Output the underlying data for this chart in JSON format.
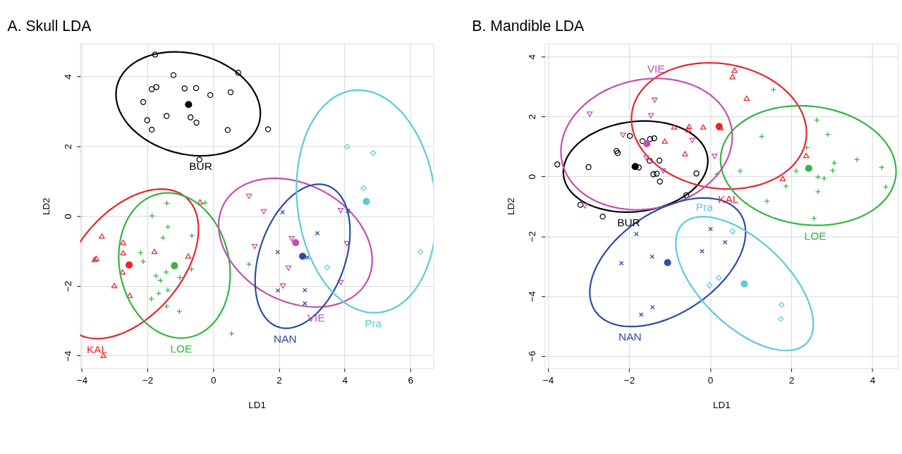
{
  "chart_data": [
    {
      "type": "scatter",
      "title": "A. Skull LDA",
      "xlabel": "LD1",
      "ylabel": "LD2",
      "xlim": [
        -4.05,
        6.7
      ],
      "ylim": [
        -4.36,
        4.94
      ],
      "xticks": [
        -4,
        -2,
        0,
        2,
        4,
        6
      ],
      "yticks": [
        -4,
        -2,
        0,
        2,
        4
      ],
      "grid": true,
      "series": [
        {
          "name": "BUR",
          "marker": "circle",
          "color": "#000000",
          "x": [
            -1.77,
            0.76,
            -1.21,
            -1.87,
            -1.73,
            -0.87,
            -0.52,
            -0.09,
            0.53,
            -2.13,
            -1.42,
            -0.69,
            -0.51,
            -2.01,
            -1.87,
            0.44,
            -0.42,
            1.67
          ],
          "values": [
            4.63,
            4.11,
            4.04,
            3.64,
            3.7,
            3.66,
            3.67,
            3.47,
            3.55,
            3.27,
            2.87,
            2.83,
            2.68,
            2.75,
            2.48,
            2.47,
            1.62,
            2.49
          ]
        },
        {
          "marker": "dot",
          "color": "#000000",
          "x": [
            -0.75
          ],
          "values": [
            3.2
          ]
        },
        {
          "name": "KAL",
          "marker": "triangle",
          "color": "#e8262b",
          "x": [
            -3.39,
            -2.74,
            -2.74,
            -3.61,
            -3.56,
            -1.79,
            -0.76,
            -2.76,
            -3.01,
            -2.54,
            -0.4,
            -3.34
          ],
          "values": [
            -0.57,
            -0.75,
            -1.05,
            -1.24,
            -1.21,
            -1.01,
            -1.14,
            -1.6,
            -1.99,
            -2.27,
            0.41,
            -3.99
          ]
        },
        {
          "marker": "dot",
          "color": "#e8262b",
          "x": [
            -2.56
          ],
          "values": [
            -1.4
          ]
        },
        {
          "name": "LOE",
          "marker": "cross",
          "color": "#33b540",
          "x": [
            -1.41,
            -0.25,
            -1.86,
            -1.38,
            -1.53,
            -0.65,
            -2.21,
            -2.13,
            -0.66,
            -1.43,
            -1.74,
            -1.61,
            -1.01,
            -1.38,
            -1.66,
            -1.88,
            -1.42,
            -1.03,
            0.56,
            1.09
          ],
          "values": [
            0.37,
            0.38,
            0.01,
            -0.31,
            -0.62,
            -0.56,
            -1.05,
            -1.3,
            -1.52,
            -1.6,
            -1.71,
            -1.84,
            -1.76,
            -2.12,
            -2.21,
            -2.37,
            -2.58,
            -2.73,
            -3.37,
            -1.38
          ]
        },
        {
          "marker": "dot",
          "color": "#33b540",
          "x": [
            -1.18
          ],
          "values": [
            -1.42
          ]
        },
        {
          "name": "VIE",
          "marker": "triangle-down",
          "color": "#c34fb0",
          "x": [
            1.09,
            1.54,
            1.26,
            2.39,
            2.29,
            2.12,
            3.88,
            4.07,
            3.88
          ],
          "values": [
            0.57,
            0.13,
            -0.87,
            -0.65,
            -1.49,
            -2.0,
            0.16,
            -0.79,
            -1.9
          ]
        },
        {
          "marker": "dot",
          "color": "#c34fb0",
          "x": [
            2.51
          ],
          "values": [
            -0.76
          ]
        },
        {
          "name": "NAN",
          "marker": "x",
          "color": "#2a4ea0",
          "x": [
            2.11,
            3.17,
            1.96,
            2.87,
            1.97,
            2.79,
            4.1,
            2.79
          ],
          "values": [
            0.11,
            -0.49,
            -1.03,
            -1.18,
            -2.13,
            -2.12,
            0.15,
            -2.5
          ]
        },
        {
          "marker": "dot",
          "color": "#2a4ea0",
          "x": [
            2.72
          ],
          "values": [
            -1.15
          ]
        },
        {
          "name": "Pra",
          "marker": "diamond",
          "color": "#5bcbdc",
          "x": [
            4.08,
            4.87,
            4.58,
            3.47,
            6.31
          ],
          "values": [
            1.99,
            1.81,
            0.8,
            -1.47,
            -1.02
          ]
        },
        {
          "marker": "dot",
          "color": "#5bcbdc",
          "x": [
            4.66
          ],
          "values": [
            0.42
          ]
        }
      ]
    },
    {
      "type": "scatter",
      "title": "B. Mandible LDA",
      "xlabel": "LD1",
      "ylabel": "LD2",
      "xlim": [
        -4.08,
        4.63
      ],
      "ylim": [
        -6.41,
        4.43
      ],
      "xticks": [
        -4,
        -2,
        0,
        2,
        4
      ],
      "yticks": [
        -6,
        -4,
        -2,
        0,
        2,
        4
      ],
      "grid": true,
      "series": [
        {
          "name": "BUR",
          "marker": "circle",
          "color": "#000000",
          "x": [
            -3.77,
            -3.0,
            -2.31,
            -2.28,
            -1.98,
            -1.67,
            -1.48,
            -1.38,
            -1.49,
            -1.25,
            -1.76,
            -1.4,
            -1.32,
            -1.24,
            -0.34,
            -0.59,
            -3.2,
            -2.65
          ],
          "values": [
            0.4,
            0.31,
            0.85,
            0.78,
            1.35,
            1.18,
            1.25,
            1.27,
            0.52,
            0.53,
            0.3,
            0.07,
            0.09,
            -0.17,
            0.1,
            -0.63,
            -0.95,
            -1.34
          ]
        },
        {
          "marker": "dot",
          "color": "#000000",
          "x": [
            -1.85
          ],
          "values": [
            0.33
          ]
        },
        {
          "name": "KAL",
          "marker": "triangle",
          "color": "#e8262b",
          "x": [
            -0.89,
            -0.52,
            -0.54,
            -0.17,
            -1.12,
            -0.62,
            0.6,
            0.55,
            0.9,
            2.37,
            1.79,
            0.26
          ],
          "values": [
            1.65,
            1.67,
            1.56,
            1.65,
            1.18,
            0.76,
            3.55,
            3.33,
            2.61,
            0.7,
            -0.07,
            1.63
          ]
        },
        {
          "marker": "dot",
          "color": "#e8262b",
          "x": [
            0.22
          ],
          "values": [
            1.67
          ]
        },
        {
          "name": "LOE",
          "marker": "cross",
          "color": "#33b540",
          "x": [
            1.56,
            2.63,
            2.9,
            1.27,
            2.38,
            3.06,
            3.62,
            3.02,
            2.12,
            2.66,
            2.81,
            4.23,
            4.33,
            1.87,
            2.66,
            1.4,
            2.56,
            0.74,
            0.17
          ],
          "values": [
            2.9,
            1.88,
            1.4,
            1.33,
            0.96,
            0.45,
            0.56,
            0.2,
            0.18,
            -0.02,
            -0.07,
            0.3,
            -0.35,
            -0.33,
            -0.51,
            -0.83,
            -1.4,
            0.18,
            0.07
          ]
        },
        {
          "marker": "dot",
          "color": "#33b540",
          "x": [
            2.43
          ],
          "values": [
            0.27
          ]
        },
        {
          "name": "VIE",
          "marker": "triangle-down",
          "color": "#c34fb0",
          "x": [
            -2.97,
            -1.37,
            -1.46,
            -2.15,
            -0.44,
            -1.58,
            -1.16,
            0.11,
            -3.09
          ],
          "values": [
            2.08,
            2.54,
            2.03,
            1.38,
            1.2,
            0.62,
            0.18,
            0.67,
            -0.99
          ]
        },
        {
          "marker": "dot",
          "color": "#c34fb0",
          "x": [
            -1.56
          ],
          "values": [
            1.09
          ]
        },
        {
          "name": "NAN",
          "marker": "x",
          "color": "#2a4ea0",
          "x": [
            -1.82,
            -2.19,
            -1.43,
            0.01,
            -0.2,
            -1.42,
            -1.7,
            0.37
          ],
          "values": [
            -1.92,
            -2.9,
            -2.68,
            -1.76,
            -2.5,
            -4.37,
            -4.62,
            -2.2
          ]
        },
        {
          "marker": "dot",
          "color": "#2a4ea0",
          "x": [
            -1.05
          ],
          "values": [
            -2.88
          ]
        },
        {
          "name": "Pra",
          "marker": "diamond",
          "color": "#5bcbdc",
          "x": [
            0.55,
            0.21,
            -0.02,
            1.76,
            1.74
          ],
          "values": [
            -1.83,
            -3.39,
            -3.64,
            -4.29,
            -4.76
          ]
        },
        {
          "marker": "dot",
          "color": "#5bcbdc",
          "x": [
            0.84
          ],
          "values": [
            -3.59
          ]
        }
      ]
    }
  ]
}
